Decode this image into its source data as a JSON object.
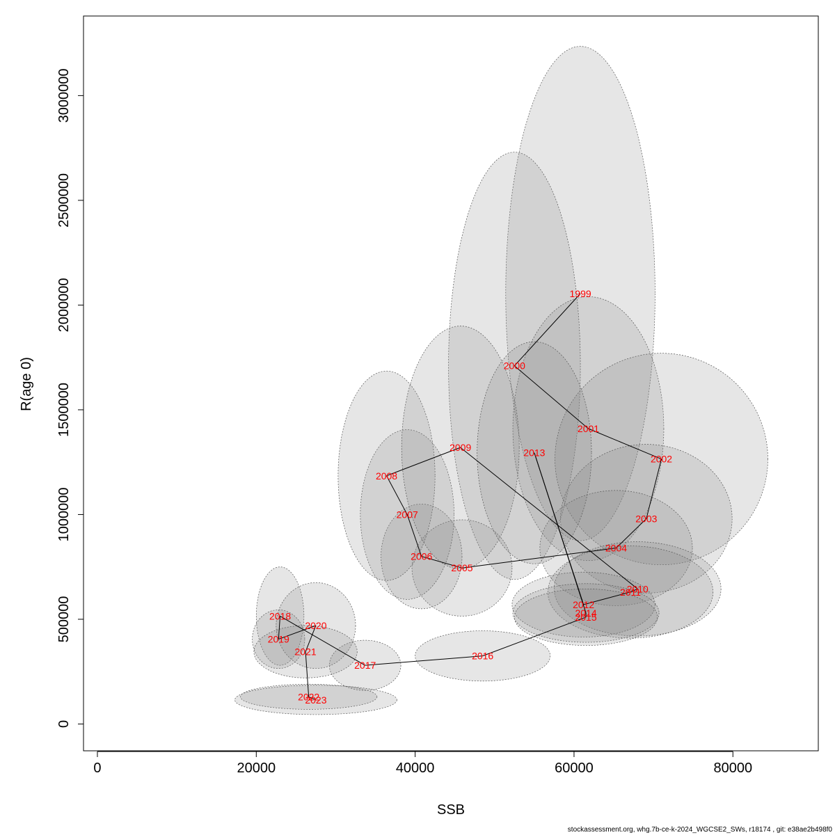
{
  "chart_data": {
    "type": "scatter",
    "title": "",
    "xlabel": "SSB",
    "ylabel": "R(age 0)",
    "xlim": [
      -1750,
      90750
    ],
    "ylim": [
      -128000,
      3380000
    ],
    "x_ticks": [
      0,
      20000,
      40000,
      60000,
      80000
    ],
    "y_ticks": [
      0,
      500000,
      1000000,
      1500000,
      2000000,
      2500000,
      3000000
    ],
    "x_tick_labels": [
      "0",
      "20000",
      "40000",
      "60000",
      "80000"
    ],
    "y_tick_labels": [
      "0",
      "500000",
      "1000000",
      "1500000",
      "2000000",
      "2500000",
      "3000000"
    ],
    "grid": false,
    "legend": "none",
    "point_color": "#ff0000",
    "line_color": "#000000",
    "ellipse_fill": "rgba(128,128,128,0.2)",
    "points": [
      {
        "year": "1999",
        "x": 60800,
        "y": 2055000
      },
      {
        "year": "2000",
        "x": 52500,
        "y": 1710000
      },
      {
        "year": "2001",
        "x": 61800,
        "y": 1410000
      },
      {
        "year": "2002",
        "x": 71000,
        "y": 1265000
      },
      {
        "year": "2003",
        "x": 69100,
        "y": 980000
      },
      {
        "year": "2004",
        "x": 65300,
        "y": 840000
      },
      {
        "year": "2005",
        "x": 45900,
        "y": 745000
      },
      {
        "year": "2006",
        "x": 40800,
        "y": 800000
      },
      {
        "year": "2007",
        "x": 39000,
        "y": 1000000
      },
      {
        "year": "2008",
        "x": 36400,
        "y": 1185000
      },
      {
        "year": "2009",
        "x": 45700,
        "y": 1320000
      },
      {
        "year": "2010",
        "x": 68000,
        "y": 645000
      },
      {
        "year": "2011",
        "x": 67100,
        "y": 630000
      },
      {
        "year": "2012",
        "x": 61200,
        "y": 570000
      },
      {
        "year": "2013",
        "x": 55000,
        "y": 1295000
      },
      {
        "year": "2014",
        "x": 61500,
        "y": 530000
      },
      {
        "year": "2015",
        "x": 61500,
        "y": 510000
      },
      {
        "year": "2016",
        "x": 48500,
        "y": 325000
      },
      {
        "year": "2017",
        "x": 33700,
        "y": 280000
      },
      {
        "year": "2018",
        "x": 23000,
        "y": 515000
      },
      {
        "year": "2019",
        "x": 22800,
        "y": 405000
      },
      {
        "year": "2020",
        "x": 27500,
        "y": 470000
      },
      {
        "year": "2021",
        "x": 26200,
        "y": 345000
      },
      {
        "year": "2022",
        "x": 26600,
        "y": 130000
      },
      {
        "year": "2023",
        "x": 27500,
        "y": 115000
      }
    ],
    "ellipses": [
      {
        "year": "1999",
        "cx": 60800,
        "cy": 2055000,
        "rx": 9400,
        "ry": 1180000
      },
      {
        "year": "2000",
        "cx": 52500,
        "cy": 1710000,
        "rx": 8300,
        "ry": 1020000
      },
      {
        "year": "2001",
        "cx": 61800,
        "cy": 1410000,
        "rx": 9500,
        "ry": 630000
      },
      {
        "year": "2002",
        "cx": 71000,
        "cy": 1265000,
        "rx": 13400,
        "ry": 505000
      },
      {
        "year": "2003",
        "cx": 69100,
        "cy": 980000,
        "rx": 10800,
        "ry": 355000
      },
      {
        "year": "2004",
        "cx": 65300,
        "cy": 840000,
        "rx": 9600,
        "ry": 275000
      },
      {
        "year": "2005",
        "cx": 45900,
        "cy": 745000,
        "rx": 6300,
        "ry": 230000
      },
      {
        "year": "2006",
        "cx": 40800,
        "cy": 800000,
        "rx": 5100,
        "ry": 250000
      },
      {
        "year": "2007",
        "cx": 39000,
        "cy": 1000000,
        "rx": 5900,
        "ry": 405000
      },
      {
        "year": "2008",
        "cx": 36400,
        "cy": 1185000,
        "rx": 6100,
        "ry": 500000
      },
      {
        "year": "2009",
        "cx": 45700,
        "cy": 1320000,
        "rx": 7400,
        "ry": 580000
      },
      {
        "year": "2010",
        "cx": 68000,
        "cy": 645000,
        "rx": 10500,
        "ry": 225000
      },
      {
        "year": "2011",
        "cx": 67100,
        "cy": 630000,
        "rx": 10400,
        "ry": 220000
      },
      {
        "year": "2012",
        "cx": 61200,
        "cy": 570000,
        "rx": 9000,
        "ry": 155000
      },
      {
        "year": "2013",
        "cx": 55000,
        "cy": 1295000,
        "rx": 7200,
        "ry": 530000
      },
      {
        "year": "2014",
        "cx": 61500,
        "cy": 530000,
        "rx": 9200,
        "ry": 140000
      },
      {
        "year": "2015",
        "cx": 61500,
        "cy": 510000,
        "rx": 9000,
        "ry": 135000
      },
      {
        "year": "2016",
        "cx": 48500,
        "cy": 325000,
        "rx": 8500,
        "ry": 120000
      },
      {
        "year": "2017",
        "cx": 33700,
        "cy": 280000,
        "rx": 4500,
        "ry": 120000
      },
      {
        "year": "2018",
        "cx": 23000,
        "cy": 515000,
        "rx": 3000,
        "ry": 235000
      },
      {
        "year": "2019",
        "cx": 22800,
        "cy": 405000,
        "rx": 3300,
        "ry": 140000
      },
      {
        "year": "2020",
        "cx": 27500,
        "cy": 470000,
        "rx": 5000,
        "ry": 205000
      },
      {
        "year": "2021",
        "cx": 26200,
        "cy": 345000,
        "rx": 6500,
        "ry": 125000
      },
      {
        "year": "2022",
        "cx": 26600,
        "cy": 130000,
        "rx": 8600,
        "ry": 60000
      },
      {
        "year": "2023",
        "cx": 27500,
        "cy": 115000,
        "rx": 10200,
        "ry": 70000
      }
    ]
  },
  "footer": "stockassessment.org, whg.7b-ce-k-2024_WGCSE2_SWs, r18174 , git: e38ae2b498f0"
}
